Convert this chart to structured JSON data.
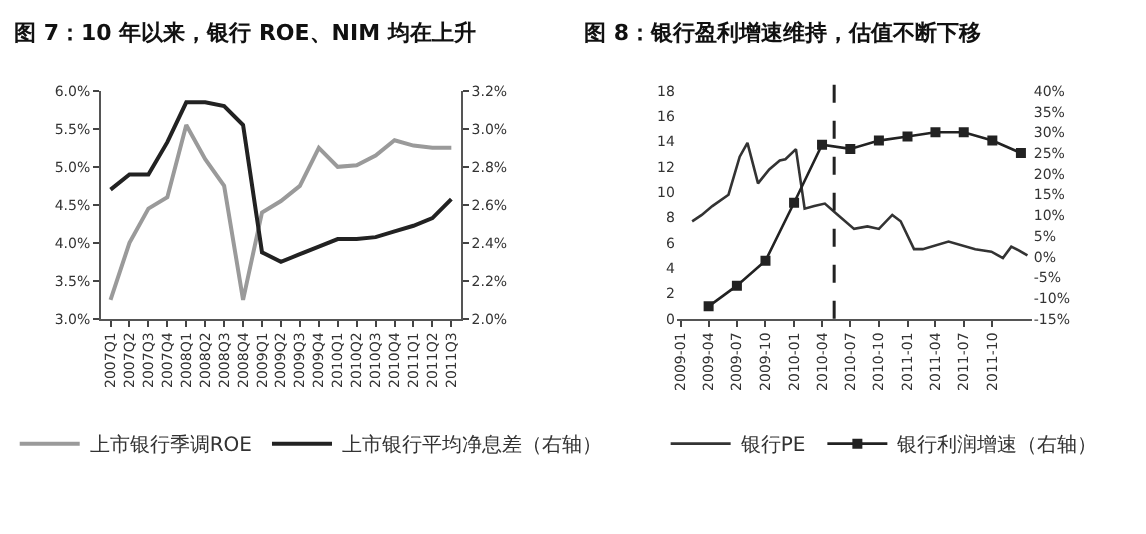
{
  "chart_data": [
    {
      "type": "line",
      "title": "图 7：10 年以来，银行 ROE、NIM 均在上升",
      "categories": [
        "2007Q1",
        "2007Q2",
        "2007Q3",
        "2007Q4",
        "2008Q1",
        "2008Q2",
        "2008Q3",
        "2008Q4",
        "2009Q1",
        "2009Q2",
        "2009Q3",
        "2009Q4",
        "2010Q1",
        "2010Q2",
        "2010Q3",
        "2010Q4",
        "2011Q1",
        "2011Q2",
        "2011Q3"
      ],
      "series": [
        {
          "name": "上市银行季调ROE",
          "color": "#9a9a9a",
          "values": [
            3.25,
            4.0,
            4.45,
            4.6,
            5.55,
            5.1,
            4.75,
            3.25,
            4.4,
            4.55,
            4.75,
            5.25,
            5.0,
            5.02,
            5.15,
            5.35,
            5.28,
            5.25,
            5.25
          ]
        },
        {
          "name": "上市银行平均净息差（右轴）",
          "color": "#222222",
          "axis": "y2",
          "values": [
            2.68,
            2.76,
            2.76,
            2.93,
            3.14,
            3.14,
            3.12,
            3.02,
            2.35,
            2.3,
            2.34,
            2.38,
            2.42,
            2.42,
            2.43,
            2.46,
            2.49,
            2.53,
            2.63
          ]
        }
      ],
      "ylim": [
        3.0,
        6.0
      ],
      "yticks": [
        {
          "value": 3.0,
          "label": "3.0%"
        },
        {
          "value": 3.5,
          "label": "3.5%"
        },
        {
          "value": 4.0,
          "label": "4.0%"
        },
        {
          "value": 4.5,
          "label": "4.5%"
        },
        {
          "value": 5.0,
          "label": "5.0%"
        },
        {
          "value": 5.5,
          "label": "5.5%"
        },
        {
          "value": 6.0,
          "label": "6.0%"
        }
      ],
      "y2lim": [
        2.0,
        3.2
      ],
      "y2ticks": [
        {
          "value": 2.0,
          "label": "2.0%"
        },
        {
          "value": 2.2,
          "label": "2.2%"
        },
        {
          "value": 2.4,
          "label": "2.4%"
        },
        {
          "value": 2.6,
          "label": "2.6%"
        },
        {
          "value": 2.8,
          "label": "2.8%"
        },
        {
          "value": 3.0,
          "label": "3.0%"
        },
        {
          "value": 3.2,
          "label": "3.2%"
        }
      ],
      "legend": "bottom",
      "line_style": "solid"
    },
    {
      "type": "line",
      "title": "图 8：银行盈利增速维持，估值不断下移",
      "series": [
        {
          "name": "银行PE",
          "color": "#333333",
          "marker": "none",
          "x": [
            "2009-02-07",
            "2009-03-10",
            "2009-04-13",
            "2009-06-04",
            "2009-07-10",
            "2009-08-04",
            "2009-09-07",
            "2009-10-13",
            "2009-11-16",
            "2009-12-04",
            "2010-01-07",
            "2010-02-04",
            "2010-03-07",
            "2010-04-10",
            "2010-05-22",
            "2010-07-13",
            "2010-08-25",
            "2010-10-01",
            "2010-11-13",
            "2010-12-10",
            "2011-01-22",
            "2011-02-19",
            "2011-05-13",
            "2011-08-07",
            "2011-09-28",
            "2011-11-04",
            "2011-12-01",
            "2011-12-25",
            "2012-01-22"
          ],
          "values": [
            7.7,
            8.2,
            8.9,
            9.8,
            12.8,
            13.9,
            10.7,
            11.8,
            12.5,
            12.6,
            13.4,
            8.7,
            8.9,
            9.1,
            8.2,
            7.1,
            7.3,
            7.1,
            8.2,
            7.7,
            5.5,
            5.5,
            6.1,
            5.5,
            5.3,
            4.8,
            5.7,
            5.4,
            5.0
          ]
        },
        {
          "name": "银行利润增速（右轴）",
          "color": "#222222",
          "axis": "y2",
          "marker": "square",
          "x": [
            "2009-04",
            "2009-07",
            "2009-10",
            "2010-01",
            "2010-04",
            "2010-07",
            "2010-10",
            "2011-01",
            "2011-04",
            "2011-07",
            "2011-10",
            "2012-01"
          ],
          "values": [
            -12,
            -7,
            -1,
            13,
            27,
            26,
            28,
            29,
            30,
            30,
            28,
            25
          ]
        }
      ],
      "xlim": [
        "2008-12-20",
        "2012-02-05"
      ],
      "xticks": [
        "2009-01",
        "2009-04",
        "2009-07",
        "2009-10",
        "2010-01",
        "2010-04",
        "2010-07",
        "2010-10",
        "2011-01",
        "2011-04",
        "2011-07",
        "2011-10"
      ],
      "ylim": [
        0,
        18
      ],
      "yticks": [
        0,
        2,
        4,
        6,
        8,
        10,
        12,
        14,
        16,
        18
      ],
      "y2lim": [
        -15,
        40
      ],
      "y2ticks": [
        {
          "value": -15,
          "label": "-15%"
        },
        {
          "value": -10,
          "label": "-10%"
        },
        {
          "value": -5,
          "label": "-5%"
        },
        {
          "value": 0,
          "label": "0%"
        },
        {
          "value": 5,
          "label": "5%"
        },
        {
          "value": 10,
          "label": "10%"
        },
        {
          "value": 15,
          "label": "15%"
        },
        {
          "value": 20,
          "label": "20%"
        },
        {
          "value": 25,
          "label": "25%"
        },
        {
          "value": 30,
          "label": "30%"
        },
        {
          "value": 35,
          "label": "35%"
        },
        {
          "value": 40,
          "label": "40%"
        }
      ],
      "ref_lines": [
        {
          "axis": "x",
          "value": "2010-05-10",
          "color": "#222222",
          "line_style": "dashed"
        }
      ],
      "legend": "bottom",
      "line_style": "solid"
    }
  ]
}
